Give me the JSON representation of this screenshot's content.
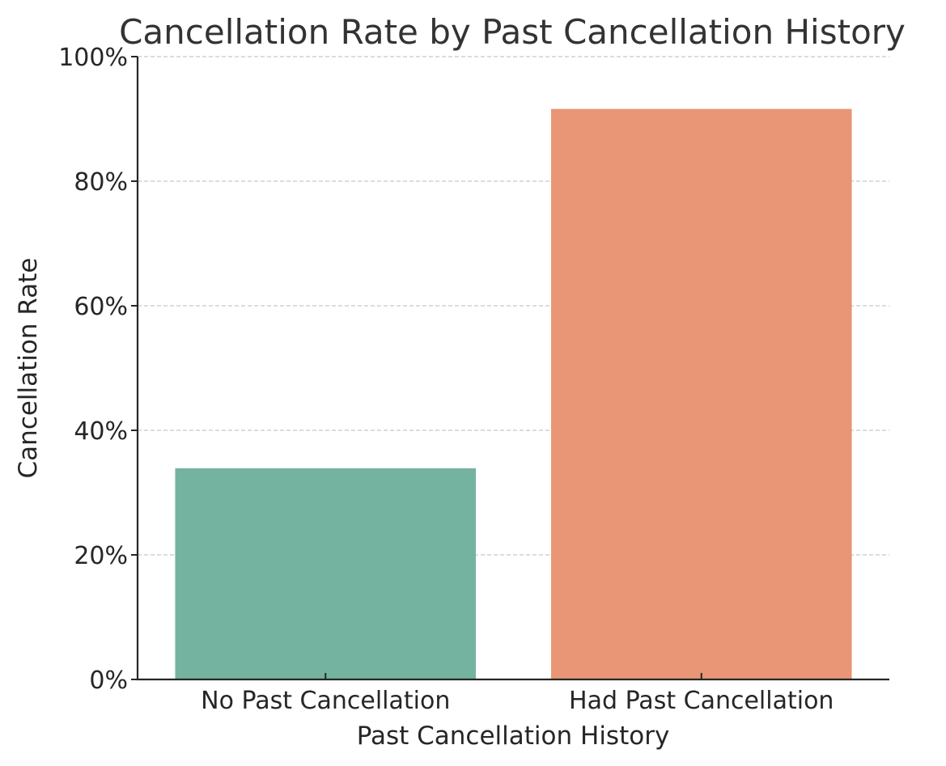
{
  "chart_data": {
    "type": "bar",
    "title": "Cancellation Rate by Past Cancellation History",
    "xlabel": "Past Cancellation History",
    "ylabel": "Cancellation Rate",
    "categories": [
      "No Past Cancellation",
      "Had Past Cancellation"
    ],
    "values": [
      0.339,
      0.916
    ],
    "ylim": [
      0,
      1
    ],
    "yticks": [
      0,
      0.2,
      0.4,
      0.6,
      0.8,
      1.0
    ],
    "ytick_labels": [
      "0%",
      "20%",
      "40%",
      "60%",
      "80%",
      "100%"
    ],
    "y_format": "percent",
    "grid": "y-dashed",
    "legend": "none",
    "colors": [
      "#73b3a0",
      "#e89675"
    ]
  }
}
